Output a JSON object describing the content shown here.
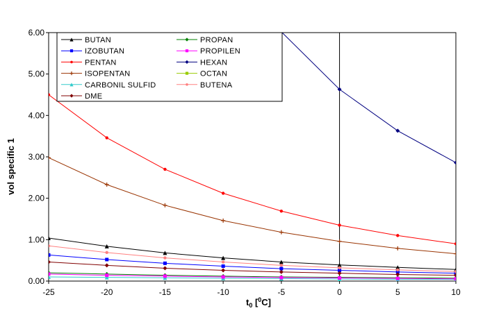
{
  "chart_data": {
    "type": "line",
    "title": "",
    "xlabel_main": "t",
    "xlabel_sub": "0",
    "xlabel_sup": "0",
    "xlabel_unit": "C]",
    "xlabel_open": " [",
    "ylabel": "vol specific 1",
    "xlim": [
      -25,
      10
    ],
    "ylim": [
      0,
      6
    ],
    "x_ticks": [
      -25,
      -20,
      -15,
      -10,
      -5,
      0,
      5,
      10
    ],
    "x_tick_labels": [
      "-25",
      "-20",
      "-15",
      "-10",
      "-5",
      "0",
      "5",
      "10"
    ],
    "y_ticks": [
      0,
      1,
      2,
      3,
      4,
      5,
      6
    ],
    "y_tick_labels": [
      "0.00",
      "1.00",
      "2.00",
      "3.00",
      "4.00",
      "5.00",
      "6.00"
    ],
    "legend_position": "top-left",
    "x": [
      -25,
      -20,
      -15,
      -10,
      -5,
      0,
      5,
      10
    ],
    "series": [
      {
        "name": "BUTAN",
        "color": "#000000",
        "marker": "triangle",
        "values": [
          1.04,
          0.84,
          0.68,
          0.56,
          0.46,
          0.39,
          0.33,
          0.28
        ]
      },
      {
        "name": "IZOBUTAN",
        "color": "#0000ff",
        "marker": "square",
        "values": [
          0.63,
          0.52,
          0.43,
          0.36,
          0.3,
          0.26,
          0.22,
          0.19
        ]
      },
      {
        "name": "PENTAN",
        "color": "#ff0000",
        "marker": "circle",
        "values": [
          4.5,
          3.46,
          2.7,
          2.12,
          1.69,
          1.35,
          1.1,
          0.9
        ]
      },
      {
        "name": "ISOPENTAN",
        "color": "#993300",
        "marker": "plus",
        "values": [
          2.98,
          2.33,
          1.83,
          1.46,
          1.18,
          0.96,
          0.79,
          0.66
        ]
      },
      {
        "name": "CARBONIL SULFID",
        "color": "#33cccc",
        "marker": "triangle",
        "values": [
          0.1,
          0.09,
          0.08,
          0.07,
          0.06,
          0.05,
          0.045,
          0.04
        ]
      },
      {
        "name": "DME",
        "color": "#800000",
        "marker": "diamond",
        "values": [
          0.46,
          0.38,
          0.31,
          0.26,
          0.22,
          0.19,
          0.16,
          0.14
        ]
      },
      {
        "name": "PROPAN",
        "color": "#008000",
        "marker": "diamond",
        "values": [
          0.2,
          0.17,
          0.14,
          0.12,
          0.1,
          0.09,
          0.08,
          0.07
        ]
      },
      {
        "name": "PROPILEN",
        "color": "#ff00ff",
        "marker": "square",
        "values": [
          0.17,
          0.14,
          0.12,
          0.1,
          0.085,
          0.075,
          0.065,
          0.055
        ]
      },
      {
        "name": "HEXAN",
        "color": "#000080",
        "marker": "diamond",
        "values": [
          null,
          null,
          null,
          null,
          6.02,
          4.63,
          3.63,
          2.86
        ]
      },
      {
        "name": "OCTAN",
        "color": "#99cc00",
        "marker": "square",
        "values": [
          null,
          null,
          null,
          null,
          null,
          null,
          null,
          null
        ]
      },
      {
        "name": "BUTENA",
        "color": "#ff8080",
        "marker": "circle",
        "values": [
          0.85,
          0.69,
          0.56,
          0.46,
          0.38,
          0.32,
          0.27,
          0.23
        ]
      }
    ]
  }
}
